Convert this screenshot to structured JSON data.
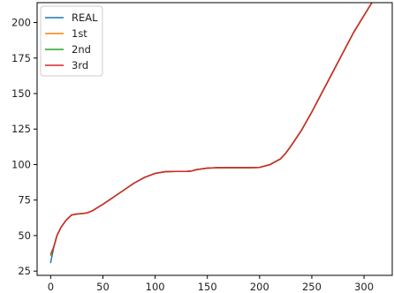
{
  "chart_data": {
    "type": "line",
    "xlim": [
      -13,
      327
    ],
    "ylim": [
      22,
      214
    ],
    "x_ticks": [
      0,
      50,
      100,
      150,
      200,
      250,
      300
    ],
    "y_ticks": [
      25,
      50,
      75,
      100,
      125,
      150,
      175,
      200
    ],
    "grid": false,
    "legend_position": "top-left",
    "series": [
      {
        "name": "REAL",
        "color": "#1f77b4",
        "x": [
          0,
          3,
          6,
          10,
          15,
          20,
          25,
          30,
          35,
          40,
          50,
          60,
          70,
          80,
          90,
          100,
          110,
          120,
          130,
          135,
          140,
          150,
          160,
          170,
          180,
          190,
          200,
          210,
          220,
          225,
          230,
          240,
          250,
          260,
          270,
          280,
          290,
          300,
          310,
          315
        ],
        "y": [
          31,
          42,
          50,
          56,
          61,
          64.5,
          65.2,
          65.5,
          66,
          67.5,
          72,
          77,
          82,
          87,
          91,
          93.8,
          95,
          95.2,
          95.2,
          95.5,
          96.5,
          97.5,
          97.8,
          97.8,
          97.8,
          97.8,
          98,
          100,
          104,
          108,
          113,
          124,
          137,
          151,
          165,
          179,
          193,
          205,
          217,
          222
        ]
      },
      {
        "name": "1st",
        "color": "#ff7f0e",
        "x": [
          0,
          3,
          6,
          10,
          15,
          20,
          25,
          30,
          35,
          40,
          50,
          60,
          70,
          80,
          90,
          100,
          110,
          120,
          130,
          135,
          140,
          150,
          160,
          170,
          180,
          190,
          200,
          210,
          220,
          225,
          230,
          240,
          250,
          260,
          270,
          280,
          290,
          300,
          310,
          315
        ],
        "y": [
          36,
          42,
          50,
          56,
          61,
          64.5,
          65.2,
          65.5,
          66,
          67.5,
          72,
          77,
          82,
          87,
          91,
          93.8,
          95,
          95.2,
          95.2,
          95.5,
          96.5,
          97.5,
          97.8,
          97.8,
          97.8,
          97.8,
          98,
          100,
          104,
          108,
          113,
          124,
          137,
          151,
          165,
          179,
          193,
          205,
          217,
          222
        ]
      },
      {
        "name": "2nd",
        "color": "#2ca02c",
        "x": [
          0,
          3,
          6,
          10,
          15,
          20,
          25,
          30,
          35,
          40,
          50,
          60,
          70,
          80,
          90,
          100,
          110,
          120,
          130,
          135,
          140,
          150,
          160,
          170,
          180,
          190,
          200,
          210,
          220,
          225,
          230,
          240,
          250,
          260,
          270,
          280,
          290,
          300,
          310,
          315
        ],
        "y": [
          37,
          42,
          50,
          56,
          61,
          64.5,
          65.2,
          65.5,
          66,
          67.5,
          72,
          77,
          82,
          87,
          91,
          93.8,
          95,
          95.2,
          95.2,
          95.5,
          96.5,
          97.5,
          97.8,
          97.8,
          97.8,
          97.8,
          98,
          100,
          104,
          108,
          113,
          124,
          137,
          151,
          165,
          179,
          193,
          205,
          217,
          222
        ]
      },
      {
        "name": "3rd",
        "color": "#d62728",
        "x": [
          1,
          3,
          6,
          10,
          15,
          20,
          25,
          30,
          35,
          40,
          50,
          60,
          70,
          80,
          90,
          100,
          110,
          120,
          130,
          135,
          140,
          150,
          160,
          170,
          180,
          190,
          200,
          210,
          220,
          225,
          230,
          240,
          250,
          260,
          270,
          280,
          290,
          300,
          310,
          315
        ],
        "y": [
          38,
          42,
          50,
          56,
          61,
          64.5,
          65.2,
          65.5,
          66,
          67.5,
          72,
          77,
          82,
          87,
          91,
          93.8,
          95,
          95.2,
          95.2,
          95.5,
          96.5,
          97.5,
          97.8,
          97.8,
          97.8,
          97.8,
          98,
          100,
          104,
          108,
          113,
          124,
          137,
          151,
          165,
          179,
          193,
          205,
          217,
          222
        ]
      }
    ]
  }
}
